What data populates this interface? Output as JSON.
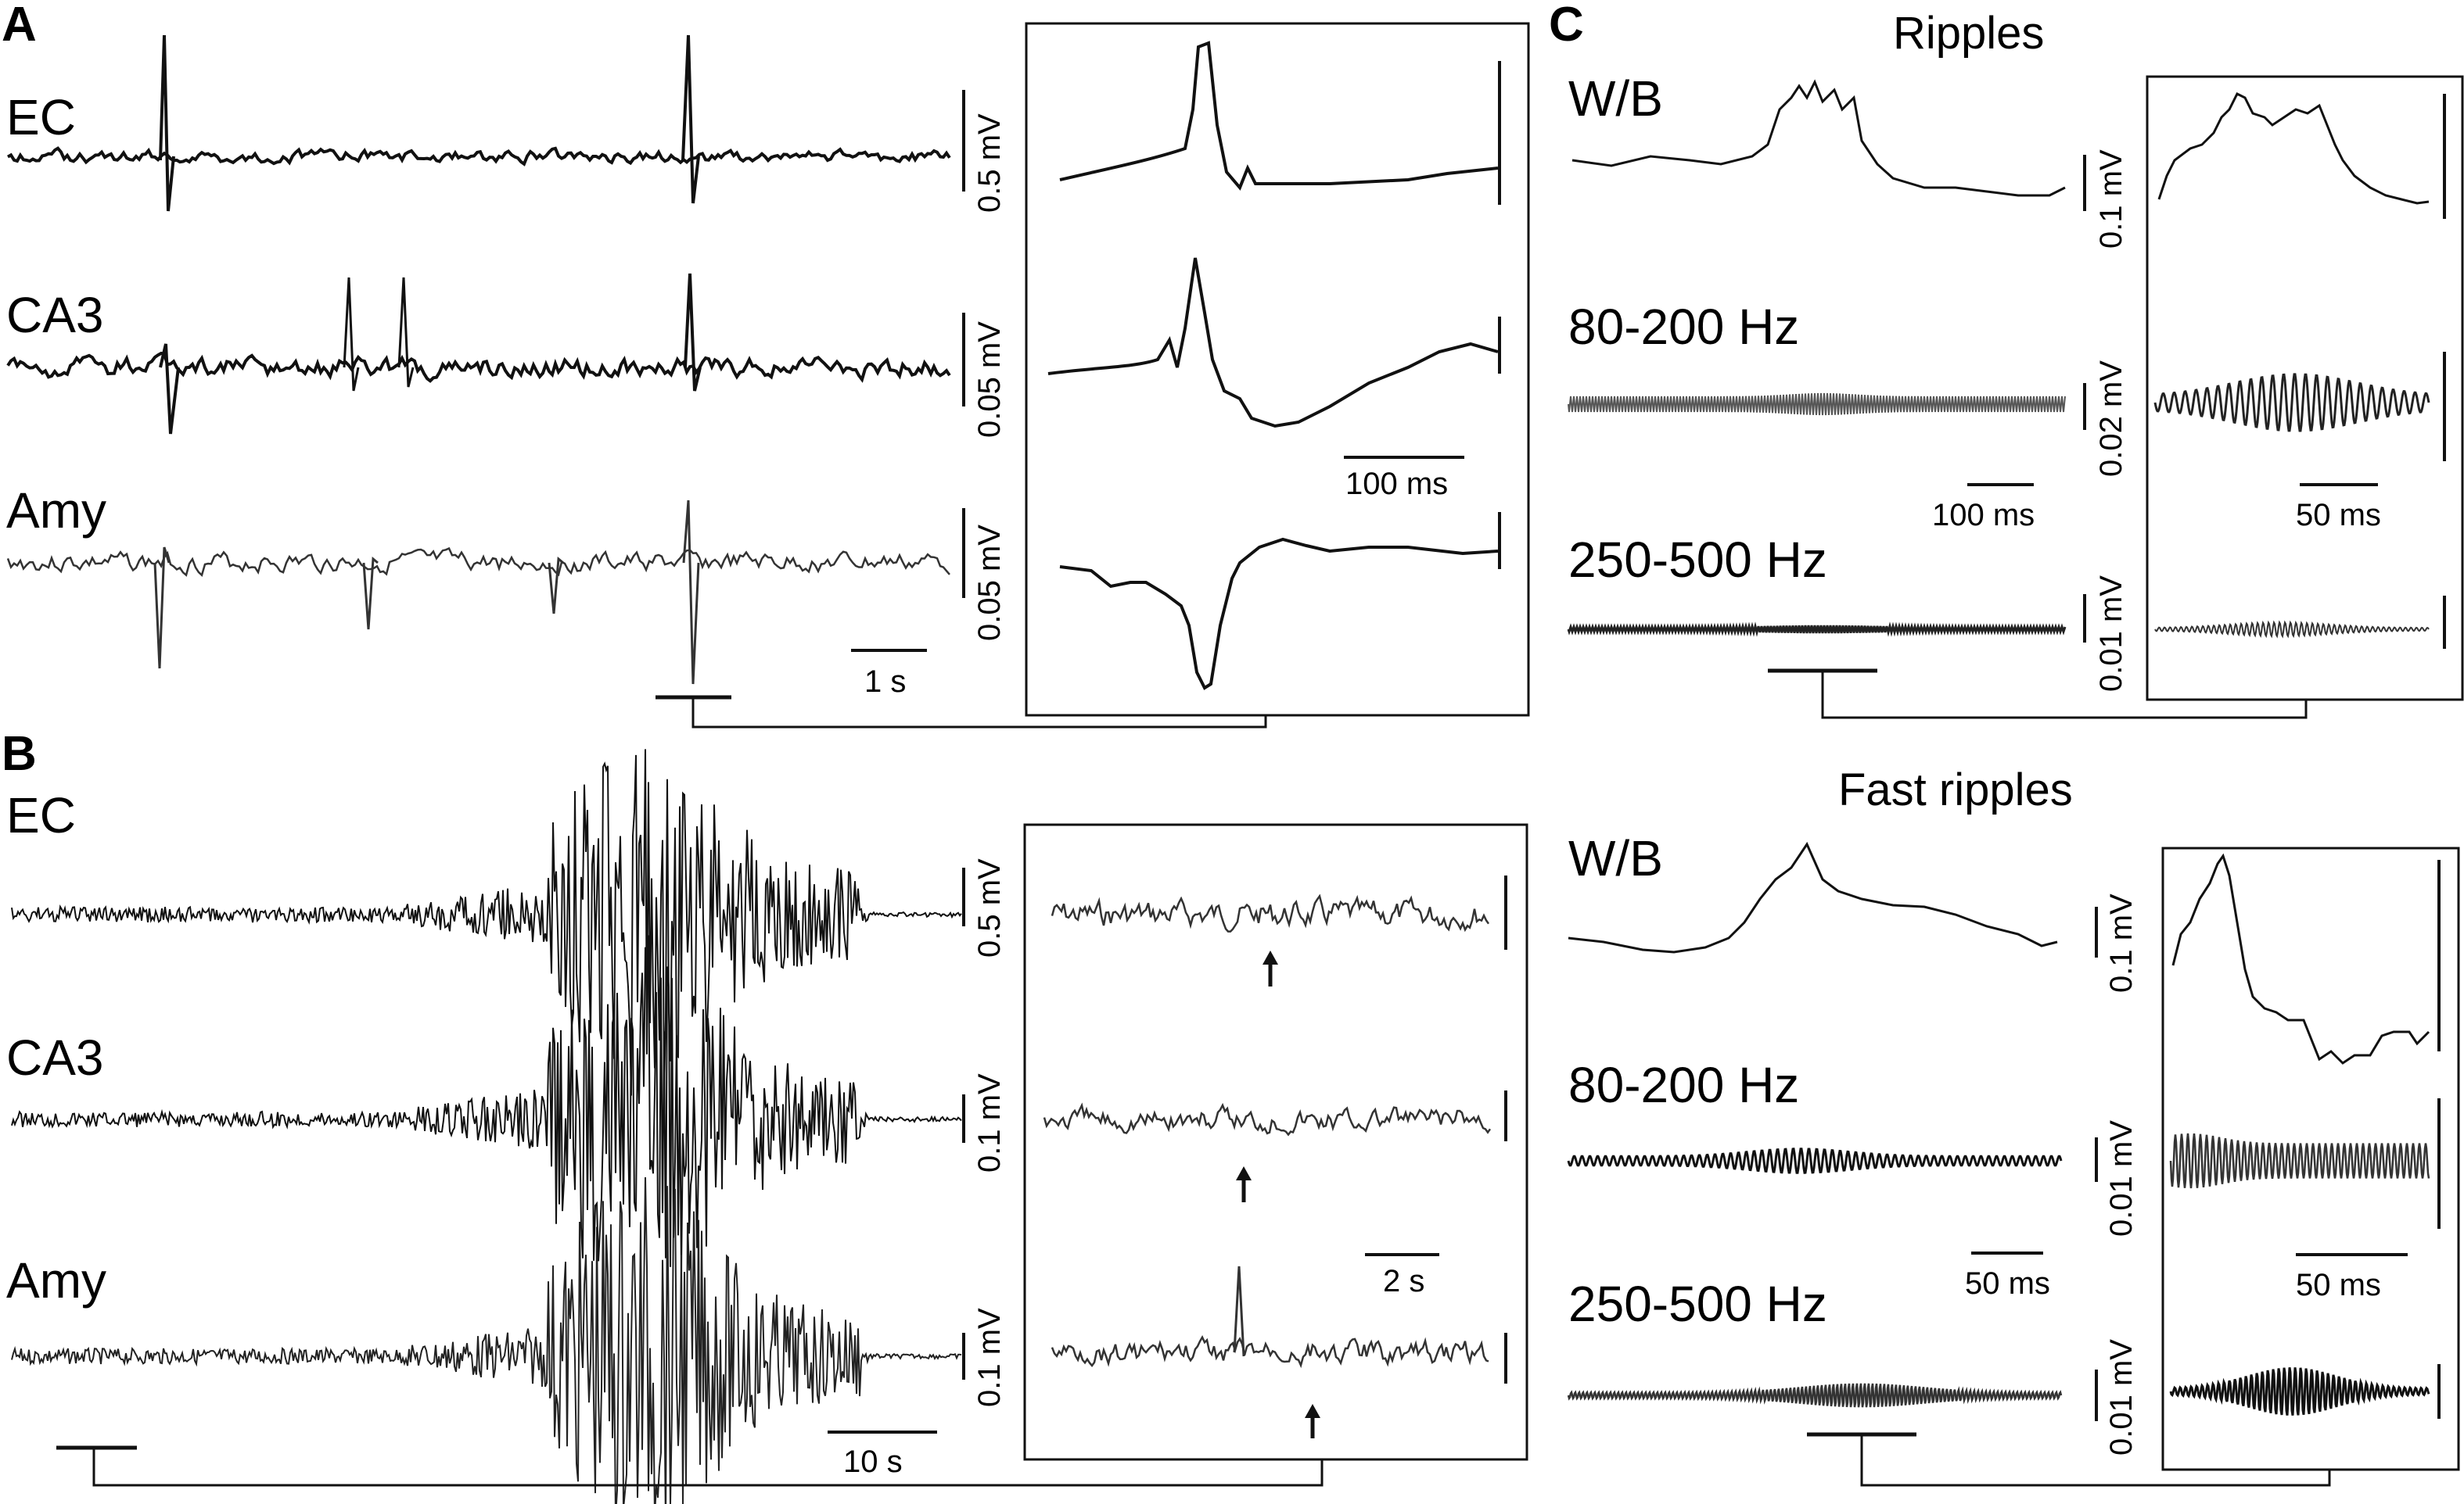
{
  "panels": {
    "A": {
      "letter": "A",
      "labels": [
        "EC",
        "CA3",
        "Amy"
      ],
      "scale_v": [
        "0.5 mV",
        "0.05 mV",
        "0.05 mV"
      ],
      "time_scale": "1 s",
      "inset_time_scale": "100 ms"
    },
    "B": {
      "letter": "B",
      "labels": [
        "EC",
        "CA3",
        "Amy"
      ],
      "scale_v": [
        "0.5 mV",
        "0.1 mV",
        "0.1 mV"
      ],
      "time_scale": "10 s",
      "inset_time_scale": "2 s"
    },
    "C": {
      "letter": "C",
      "ripples": {
        "title": "Ripples",
        "labels": [
          "W/B",
          "80-200 Hz",
          "250-500 Hz"
        ],
        "scale_v": [
          "0.1 mV",
          "0.02 mV",
          "0.01 mV"
        ],
        "time_scale": "100 ms",
        "inset_time_scale": "50 ms"
      },
      "fast_ripples": {
        "title": "Fast ripples",
        "labels": [
          "W/B",
          "80-200 Hz",
          "250-500 Hz"
        ],
        "scale_v": [
          "0.1 mV",
          "0.01 mV",
          "0.01 mV"
        ],
        "time_scale": "50 ms",
        "inset_time_scale": "50 ms"
      }
    }
  }
}
